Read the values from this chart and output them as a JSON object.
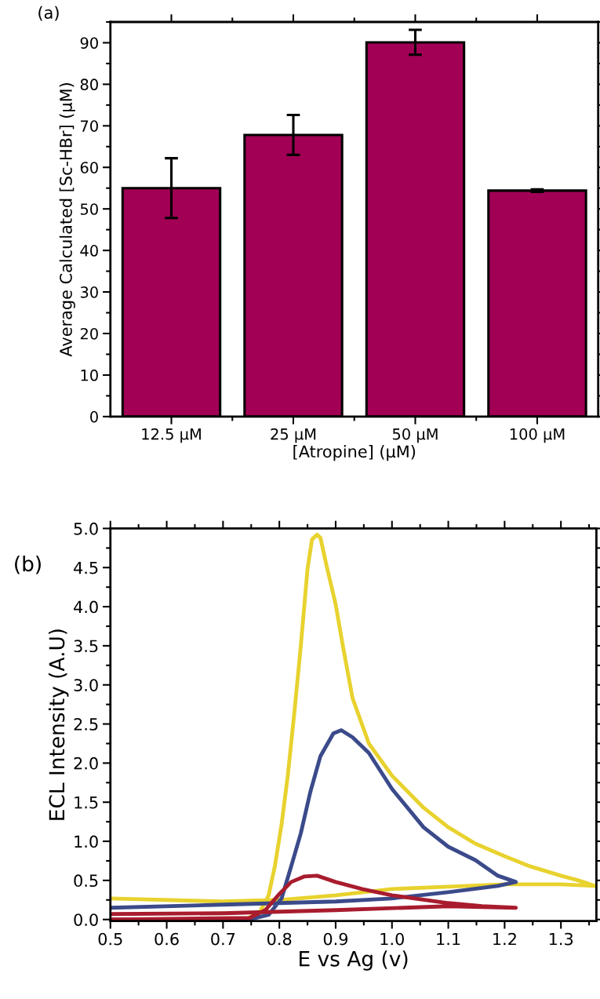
{
  "chart_data": [
    {
      "type": "bar",
      "annotations": [
        "(a)"
      ],
      "xlabel": "[Atropine] (μM)",
      "ylabel": "Average Calculated [Sc-HBr] (μM)",
      "categories": [
        "12.5 μM",
        "25 μM",
        "50 μM",
        "100 μM"
      ],
      "values": [
        55,
        67.8,
        90.1,
        54.4
      ],
      "errors": [
        7.2,
        4.8,
        3,
        0.3
      ],
      "color": "#a10055",
      "ylim": [
        0,
        95
      ],
      "yticks": [
        0,
        10,
        20,
        30,
        40,
        50,
        60,
        70,
        80,
        90
      ],
      "grid": false,
      "legend": false
    },
    {
      "type": "line",
      "annotations": [
        "(b)"
      ],
      "xlabel": "E vs Ag (v)",
      "ylabel": "ECL Intensity (A.U)",
      "series": [
        {
          "color": "#e8d22e",
          "x": [
            0.5,
            0.7,
            0.8,
            0.9,
            1.0,
            1.1,
            1.2,
            1.3,
            1.36,
            1.331,
            1.3,
            1.245,
            1.2,
            1.148,
            1.1,
            1.056,
            1.0,
            0.959,
            0.93,
            0.913,
            0.9,
            0.884,
            0.873,
            0.867,
            0.858,
            0.85,
            0.838,
            0.827,
            0.815,
            0.804,
            0.792,
            0.781,
            0.764,
            0.741,
            0.7,
            0.5
          ],
          "values": [
            0.27,
            0.23,
            0.25,
            0.31,
            0.39,
            0.42,
            0.45,
            0.45,
            0.43,
            0.5,
            0.56,
            0.68,
            0.81,
            0.97,
            1.18,
            1.43,
            1.84,
            2.25,
            2.83,
            3.49,
            4.03,
            4.52,
            4.88,
            4.92,
            4.86,
            4.48,
            3.49,
            2.67,
            1.84,
            1.22,
            0.68,
            0.31,
            0.08,
            0.01,
            0.0,
            0.0
          ]
        },
        {
          "color": "#3b4a8a",
          "x": [
            0.5,
            0.7,
            0.8,
            0.9,
            1.0,
            1.1,
            1.188,
            1.22,
            1.188,
            1.148,
            1.1,
            1.056,
            1.0,
            0.959,
            0.93,
            0.91,
            0.896,
            0.873,
            0.855,
            0.838,
            0.821,
            0.804,
            0.781,
            0.747,
            0.5
          ],
          "values": [
            0.15,
            0.19,
            0.21,
            0.23,
            0.27,
            0.35,
            0.43,
            0.48,
            0.56,
            0.76,
            0.93,
            1.18,
            1.67,
            2.13,
            2.33,
            2.42,
            2.38,
            2.09,
            1.63,
            1.1,
            0.68,
            0.27,
            0.06,
            0.0,
            0.0
          ]
        },
        {
          "color": "#a81c2e",
          "x": [
            0.5,
            0.7,
            0.9,
            1.1,
            1.22,
            1.16,
            1.1,
            1.0,
            0.947,
            0.9,
            0.867,
            0.844,
            0.821,
            0.798,
            0.775,
            0.747,
            0.5
          ],
          "values": [
            0.07,
            0.08,
            0.12,
            0.17,
            0.15,
            0.17,
            0.21,
            0.31,
            0.39,
            0.48,
            0.56,
            0.55,
            0.48,
            0.31,
            0.12,
            0.02,
            0.0
          ]
        }
      ],
      "xlim": [
        0.5,
        1.363
      ],
      "xticks": [
        0.5,
        0.6,
        0.7,
        0.8,
        0.9,
        {
          "value": 1.0,
          "label": "1.0"
        },
        1.1,
        1.2,
        1.3
      ],
      "ylim": [
        -0.02,
        5.0
      ],
      "yticks": [
        {
          "value": 0,
          "label": "0.0"
        },
        0.5,
        {
          "value": 1,
          "label": "1.0"
        },
        1.5,
        {
          "value": 2,
          "label": "2.0"
        },
        2.5,
        {
          "value": 3,
          "label": "3.0"
        },
        3.5,
        {
          "value": 4,
          "label": "4.0"
        },
        4.5,
        {
          "value": 5,
          "label": "5.0"
        }
      ],
      "grid": false,
      "legend": false,
      "line_style": "solid",
      "marker": "none"
    }
  ]
}
